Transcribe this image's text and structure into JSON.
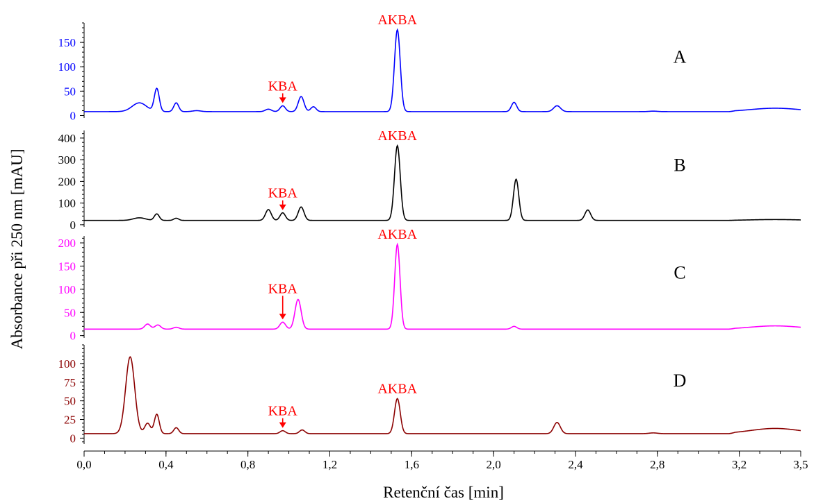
{
  "chart_data": {
    "type": "line",
    "xlabel": "Retenční čas [min]",
    "ylabel": "Absorbance při 250 nm [mAU]",
    "xlim": [
      0.0,
      3.5
    ],
    "x_ticks": [
      "0,0",
      "0,4",
      "0,8",
      "1,2",
      "1,6",
      "2,0",
      "2,4",
      "2,8",
      "3,2",
      "3,5"
    ],
    "x_tick_values": [
      0.0,
      0.4,
      0.8,
      1.2,
      1.6,
      2.0,
      2.4,
      2.8,
      3.2,
      3.5
    ],
    "label_color": "#ff0000",
    "panels": [
      {
        "label": "A",
        "color": "#0000ff",
        "ylim": [
          -5,
          190
        ],
        "y_ticks": [
          0,
          50,
          100,
          150
        ],
        "baseline": 8,
        "peaks": [
          {
            "x": 0.27,
            "h": 18,
            "w": 0.035
          },
          {
            "x": 0.355,
            "h": 47,
            "w": 0.012
          },
          {
            "x": 0.45,
            "h": 18,
            "w": 0.012
          },
          {
            "x": 0.55,
            "h": 2,
            "w": 0.02
          },
          {
            "x": 0.9,
            "h": 5,
            "w": 0.015
          },
          {
            "x": 0.97,
            "h": 12,
            "w": 0.013
          },
          {
            "x": 1.06,
            "h": 31,
            "w": 0.014
          },
          {
            "x": 1.12,
            "h": 10,
            "w": 0.013
          },
          {
            "x": 1.53,
            "h": 168,
            "w": 0.014
          },
          {
            "x": 2.1,
            "h": 19,
            "w": 0.013
          },
          {
            "x": 2.31,
            "h": 12,
            "w": 0.017
          },
          {
            "x": 2.78,
            "h": 1,
            "w": 0.02
          }
        ],
        "hump": {
          "start": 3.15,
          "end": 3.5,
          "h": 7
        },
        "kba": {
          "text": "KBA",
          "x": 0.97
        },
        "akba": {
          "text": "AKBA",
          "x": 1.53
        }
      },
      {
        "label": "B",
        "color": "#000000",
        "ylim": [
          -10,
          435
        ],
        "y_ticks": [
          0,
          100,
          200,
          300,
          400
        ],
        "baseline": 20,
        "peaks": [
          {
            "x": 0.27,
            "h": 12,
            "w": 0.03
          },
          {
            "x": 0.355,
            "h": 30,
            "w": 0.012
          },
          {
            "x": 0.45,
            "h": 10,
            "w": 0.012
          },
          {
            "x": 0.9,
            "h": 50,
            "w": 0.014
          },
          {
            "x": 0.97,
            "h": 35,
            "w": 0.013
          },
          {
            "x": 1.06,
            "h": 62,
            "w": 0.014
          },
          {
            "x": 1.53,
            "h": 345,
            "w": 0.014
          },
          {
            "x": 2.11,
            "h": 190,
            "w": 0.013
          },
          {
            "x": 2.46,
            "h": 48,
            "w": 0.014
          }
        ],
        "hump": {
          "start": 3.15,
          "end": 3.5,
          "h": 4
        },
        "kba": {
          "text": "KBA",
          "x": 0.97
        },
        "akba": {
          "text": "AKBA",
          "x": 1.53
        }
      },
      {
        "label": "C",
        "color": "#ff00ff",
        "ylim": [
          -5,
          215
        ],
        "y_ticks": [
          0,
          50,
          100,
          150,
          200
        ],
        "baseline": 14,
        "peaks": [
          {
            "x": 0.31,
            "h": 11,
            "w": 0.014
          },
          {
            "x": 0.36,
            "h": 9,
            "w": 0.014
          },
          {
            "x": 0.45,
            "h": 4,
            "w": 0.014
          },
          {
            "x": 0.97,
            "h": 15,
            "w": 0.014
          },
          {
            "x": 1.045,
            "h": 64,
            "w": 0.015
          },
          {
            "x": 1.53,
            "h": 183,
            "w": 0.013
          },
          {
            "x": 2.1,
            "h": 6,
            "w": 0.013
          }
        ],
        "hump": {
          "start": 3.15,
          "end": 3.5,
          "h": 7
        },
        "kba": {
          "text": "KBA",
          "x": 0.97
        },
        "akba": {
          "text": "AKBA",
          "x": 1.53
        }
      },
      {
        "label": "D",
        "color": "#8b0000",
        "ylim": [
          -8,
          125
        ],
        "y_ticks": [
          0,
          25,
          50,
          75,
          100
        ],
        "baseline": 6,
        "peaks": [
          {
            "x": 0.225,
            "h": 103,
            "w": 0.022
          },
          {
            "x": 0.31,
            "h": 14,
            "w": 0.014
          },
          {
            "x": 0.355,
            "h": 26,
            "w": 0.012
          },
          {
            "x": 0.45,
            "h": 8,
            "w": 0.012
          },
          {
            "x": 0.97,
            "h": 4,
            "w": 0.013
          },
          {
            "x": 1.065,
            "h": 5,
            "w": 0.013
          },
          {
            "x": 1.53,
            "h": 47,
            "w": 0.014
          },
          {
            "x": 2.31,
            "h": 15,
            "w": 0.016
          },
          {
            "x": 2.78,
            "h": 1,
            "w": 0.02
          }
        ],
        "hump": {
          "start": 3.15,
          "end": 3.5,
          "h": 7
        },
        "kba": {
          "text": "KBA",
          "x": 0.97
        },
        "akba": {
          "text": "AKBA",
          "x": 1.53
        }
      }
    ]
  }
}
